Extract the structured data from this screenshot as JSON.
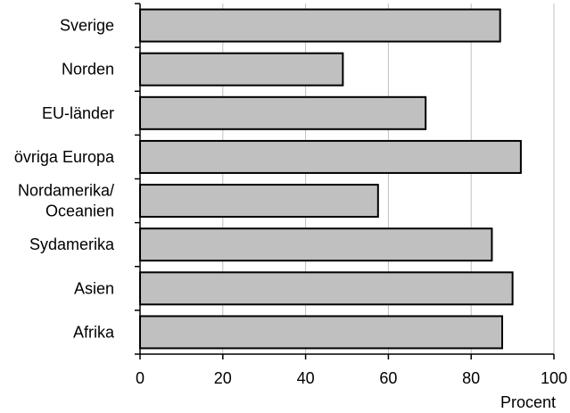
{
  "chart_data": {
    "type": "bar",
    "orientation": "horizontal",
    "categories": [
      [
        "Sverige"
      ],
      [
        "Norden"
      ],
      [
        "EU-länder"
      ],
      [
        "övriga Europa"
      ],
      [
        "Nordamerika/",
        "Oceanien"
      ],
      [
        "Sydamerika"
      ],
      [
        "Asien"
      ],
      [
        "Afrika"
      ]
    ],
    "values": [
      87,
      49,
      69,
      92,
      57.5,
      85,
      90,
      87.5
    ],
    "xlim": [
      0,
      100
    ],
    "xticks": [
      0,
      20,
      40,
      60,
      80,
      100
    ],
    "xtick_labels": [
      "0",
      "20",
      "40",
      "60",
      "80",
      "100"
    ],
    "xlabel": "Procent",
    "ylabel": "",
    "title": "",
    "grid": "vertical",
    "bar_color": "#c0c0c0",
    "bar_edge_color": "#000000",
    "grid_color": "#c0c0c0"
  }
}
